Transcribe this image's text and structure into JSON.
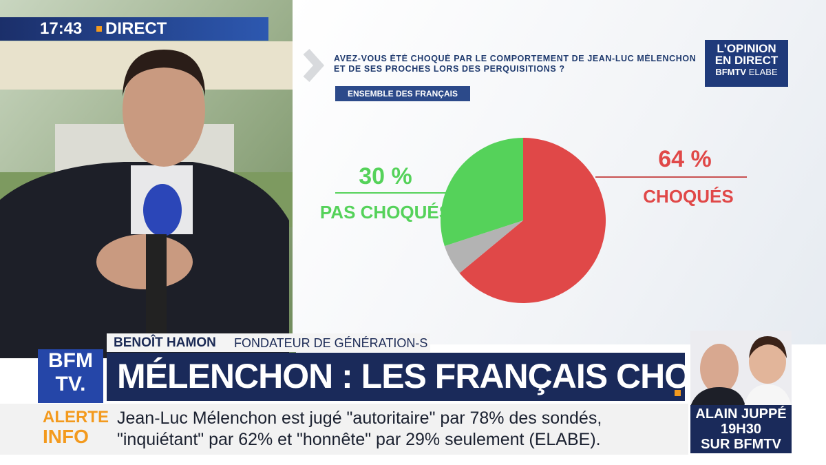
{
  "clock": "17:43",
  "live": "DIRECT",
  "chart_data": {
    "type": "pie",
    "title": "AVEZ-VOUS ÉTÉ CHOQUÉ PAR LE COMPORTEMENT DE JEAN-LUC MÉLENCHON ET DE SES PROCHES LORS DES PERQUISITIONS ?",
    "subtitle": "ENSEMBLE DES FRANÇAIS",
    "categories": [
      "CHOQUÉS",
      null,
      "PAS CHOQUÉS"
    ],
    "values": [
      64,
      6,
      30
    ],
    "value_labels": [
      "64 %",
      null,
      "30 %"
    ],
    "colors": [
      "#e04848",
      "#b3b3b3",
      "#55d25a"
    ]
  },
  "logo": {
    "line1": "L'OPINION",
    "line2": "EN DIRECT",
    "brand": "BFMTV",
    "partner": "ELABE"
  },
  "speaker": {
    "name": "BENOÎT HAMON",
    "role": "FONDATEUR DE GÉNÉRATION-S"
  },
  "headline": "MÉLENCHON : LES FRANÇAIS CHOQUÉS",
  "channel_logo": {
    "top": "BFM",
    "bottom": "TV."
  },
  "alert": {
    "line1": "ALERTE",
    "line2": "INFO"
  },
  "ticker": [
    "Jean-Luc Mélenchon est jugé \"autoritaire\" par 78% des sondés,",
    "\"inquiétant\" par 62% et \"honnête\" par 29% seulement (ELABE)."
  ],
  "promo": {
    "name": "ALAIN JUPPÉ",
    "time": "19H30",
    "channel": "SUR BFMTV"
  }
}
